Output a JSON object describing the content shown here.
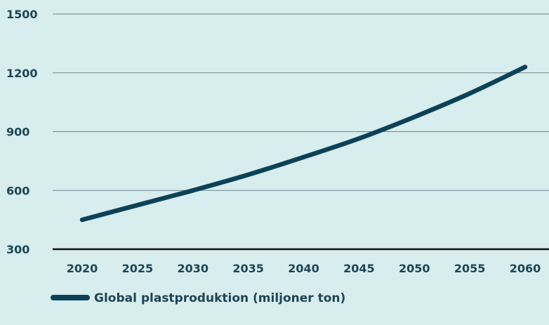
{
  "colors": {
    "background": "#d8eded",
    "series": "#0c4257",
    "gridline": "#6a8592",
    "baseline": "#111111",
    "text": "#1d4556"
  },
  "chart_data": {
    "type": "line",
    "title": "",
    "xlabel": "",
    "ylabel": "",
    "x": [
      2020,
      2025,
      2030,
      2035,
      2040,
      2045,
      2050,
      2055,
      2060
    ],
    "xticks": [
      "2020",
      "2025",
      "2030",
      "2035",
      "2040",
      "2045",
      "2050",
      "2055",
      "2060"
    ],
    "yticks": [
      "300",
      "600",
      "900",
      "1200",
      "1500"
    ],
    "ylim": [
      300,
      1500
    ],
    "grid": true,
    "legend_position": "bottom-left",
    "series": [
      {
        "name": "Global plastproduktion (miljoner ton)",
        "values": [
          450,
          525,
          600,
          680,
          770,
          865,
          975,
          1095,
          1230
        ]
      }
    ]
  }
}
